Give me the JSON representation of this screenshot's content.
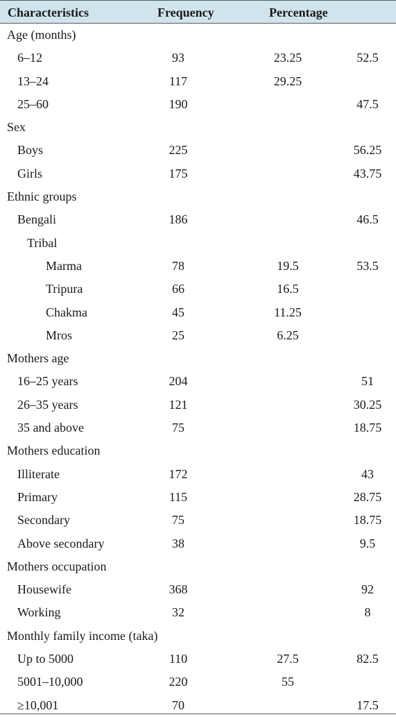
{
  "header": {
    "characteristics": "Characteristics",
    "frequency": "Frequency",
    "percentage": "Percentage"
  },
  "rows": [
    {
      "label": "Age (months)",
      "level": 0,
      "freq": "",
      "p1": "",
      "p2": ""
    },
    {
      "label": "6–12",
      "level": 1,
      "freq": "93",
      "p1": "23.25",
      "p2": "52.5"
    },
    {
      "label": "13–24",
      "level": 1,
      "freq": "117",
      "p1": "29.25",
      "p2": ""
    },
    {
      "label": "25–60",
      "level": 1,
      "freq": "190",
      "p1": "",
      "p2": "47.5"
    },
    {
      "label": "Sex",
      "level": 0,
      "freq": "",
      "p1": "",
      "p2": ""
    },
    {
      "label": "Boys",
      "level": 1,
      "freq": "225",
      "p1": "",
      "p2": "56.25"
    },
    {
      "label": "Girls",
      "level": 1,
      "freq": "175",
      "p1": "",
      "p2": "43.75"
    },
    {
      "label": "Ethnic groups",
      "level": 0,
      "freq": "",
      "p1": "",
      "p2": ""
    },
    {
      "label": "Bengali",
      "level": 1,
      "freq": "186",
      "p1": "",
      "p2": "46.5"
    },
    {
      "label": "Tribal",
      "level": 2,
      "freq": "",
      "p1": "",
      "p2": ""
    },
    {
      "label": "Marma",
      "level": 3,
      "freq": "78",
      "p1": "19.5",
      "p2": "53.5"
    },
    {
      "label": "Tripura",
      "level": 3,
      "freq": "66",
      "p1": "16.5",
      "p2": ""
    },
    {
      "label": "Chakma",
      "level": 3,
      "freq": "45",
      "p1": "11.25",
      "p2": ""
    },
    {
      "label": "Mros",
      "level": 3,
      "freq": "25",
      "p1": "6.25",
      "p2": ""
    },
    {
      "label": "Mothers age",
      "level": 0,
      "freq": "",
      "p1": "",
      "p2": ""
    },
    {
      "label": "16–25 years",
      "level": 1,
      "freq": "204",
      "p1": "",
      "p2": "51"
    },
    {
      "label": "26–35 years",
      "level": 1,
      "freq": "121",
      "p1": "",
      "p2": "30.25"
    },
    {
      "label": "35 and above",
      "level": 1,
      "freq": "75",
      "p1": "",
      "p2": "18.75"
    },
    {
      "label": "Mothers education",
      "level": 0,
      "freq": "",
      "p1": "",
      "p2": ""
    },
    {
      "label": "Illiterate",
      "level": 1,
      "freq": "172",
      "p1": "",
      "p2": "43"
    },
    {
      "label": "Primary",
      "level": 1,
      "freq": "115",
      "p1": "",
      "p2": "28.75"
    },
    {
      "label": "Secondary",
      "level": 1,
      "freq": "75",
      "p1": "",
      "p2": "18.75"
    },
    {
      "label": "Above secondary",
      "level": 1,
      "freq": "38",
      "p1": "",
      "p2": "9.5"
    },
    {
      "label": "Mothers occupation",
      "level": 0,
      "freq": "",
      "p1": "",
      "p2": ""
    },
    {
      "label": "Housewife",
      "level": 1,
      "freq": "368",
      "p1": "",
      "p2": "92"
    },
    {
      "label": "Working",
      "level": 1,
      "freq": "32",
      "p1": "",
      "p2": "8"
    },
    {
      "label": "Monthly family income (taka)",
      "level": 0,
      "freq": "",
      "p1": "",
      "p2": ""
    },
    {
      "label": "Up to 5000",
      "level": 1,
      "freq": "110",
      "p1": "27.5",
      "p2": "82.5"
    },
    {
      "label": "5001–10,000",
      "level": 1,
      "freq": "220",
      "p1": "55",
      "p2": ""
    },
    {
      "label": "≥10,001",
      "level": 1,
      "freq": "70",
      "p1": "",
      "p2": "17.5"
    }
  ],
  "colors": {
    "header_background": "#cfe4ec",
    "rule": "#5b5b5b",
    "text": "#1a1a1a"
  }
}
